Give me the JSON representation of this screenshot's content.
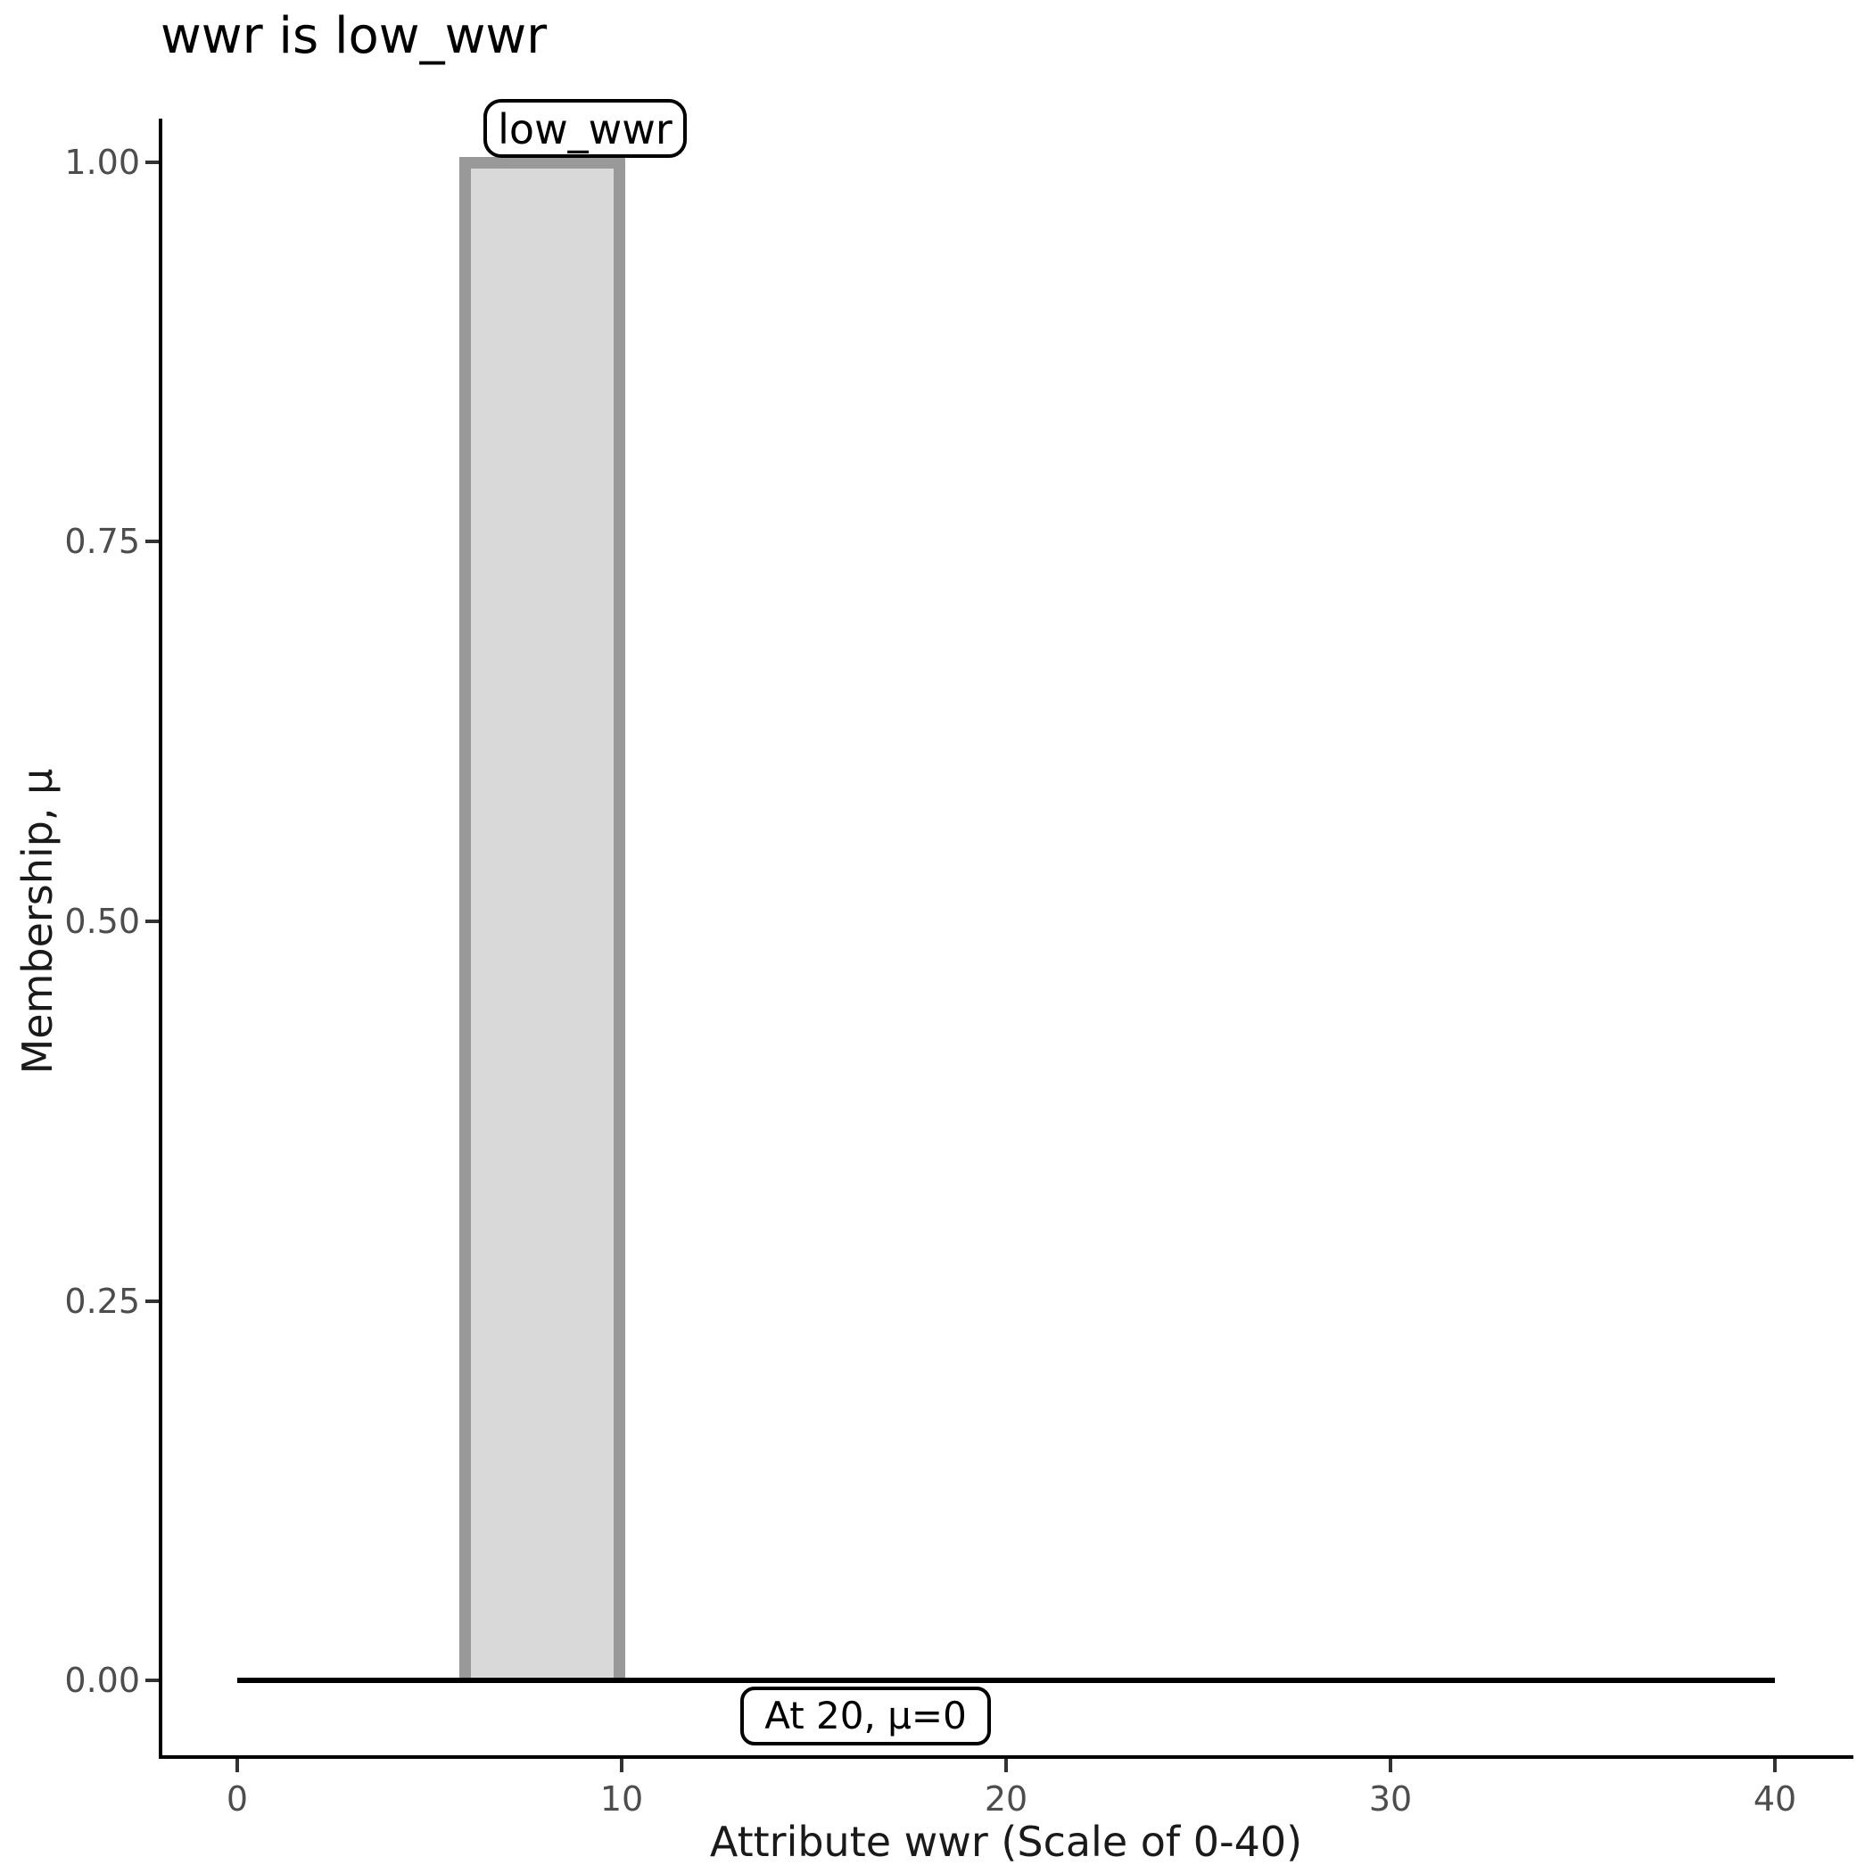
{
  "title": "wwr is low_wwr",
  "x_axis": {
    "label": "Attribute wwr (Scale of 0-40)",
    "tick_labels": [
      "0",
      "10",
      "20",
      "30",
      "40"
    ]
  },
  "y_axis": {
    "label": "Membership, μ",
    "tick_labels": [
      "1.00",
      "0.75",
      "0.50",
      "0.25",
      "0.00"
    ]
  },
  "annotations": {
    "set_label": "low_wwr",
    "eval_label": "At 20, μ=0"
  },
  "colors": {
    "background": "#ffffff",
    "axis_line": "#000000",
    "tick_mark": "#333333",
    "tick_label": "#4d4d4d",
    "bar_fill": "#d9d9d9",
    "bar_stroke": "#999999",
    "zero_line": "#000000",
    "annotation_border": "#000000",
    "annotation_fill": "#ffffff"
  },
  "chart_data": {
    "type": "area",
    "title": "wwr is low_wwr",
    "xlabel": "Attribute wwr (Scale of 0-40)",
    "ylabel": "Membership, μ",
    "xlim": [
      0,
      40
    ],
    "ylim": [
      0,
      1
    ],
    "x_ticks": [
      0,
      10,
      20,
      30,
      40
    ],
    "y_ticks": [
      1.0,
      0.75,
      0.5,
      0.25,
      0.0
    ],
    "grid": "off",
    "legend": "none",
    "series": [
      {
        "name": "low_wwr",
        "kind": "filled-rectangle-membership-set",
        "points_x_mu": [
          [
            6,
            0
          ],
          [
            6,
            1
          ],
          [
            10,
            1
          ],
          [
            10,
            0
          ]
        ],
        "fill": "#d9d9d9",
        "stroke": "#999999"
      },
      {
        "name": "evaluated membership at input",
        "kind": "line",
        "points_x_mu": [
          [
            0,
            0
          ],
          [
            40,
            0
          ]
        ],
        "stroke": "#000000"
      }
    ],
    "annotations": [
      {
        "text": "low_wwr",
        "anchor_x": 8,
        "anchor_mu": 1,
        "style": "rounded-box"
      },
      {
        "text": "At 20, μ=0",
        "anchor_x": 20,
        "anchor_mu": 0,
        "style": "rounded-box"
      }
    ]
  }
}
